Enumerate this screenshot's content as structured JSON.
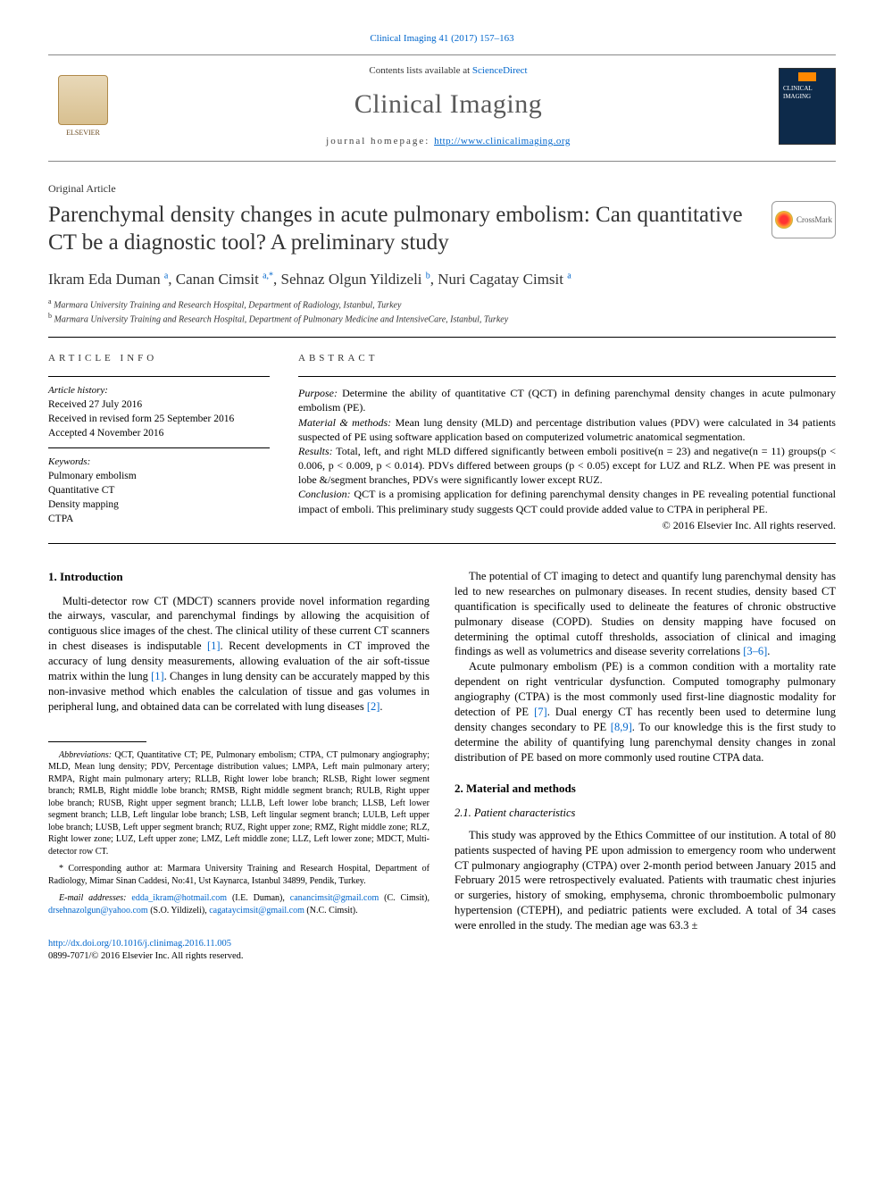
{
  "top_citation": "Clinical Imaging 41 (2017) 157–163",
  "masthead": {
    "contents_prefix": "Contents lists available at ",
    "contents_link": "ScienceDirect",
    "journal": "Clinical Imaging",
    "homepage_prefix": "journal homepage: ",
    "homepage_url": "http://www.clinicalimaging.org",
    "elsevier_label": "ELSEVIER",
    "cover_label": "CLINICAL IMAGING"
  },
  "article_type": "Original Article",
  "title": "Parenchymal density changes in acute pulmonary embolism: Can quantitative CT be a diagnostic tool? A preliminary study",
  "crossmark": "CrossMark",
  "authors_html": "Ikram Eda Duman <sup>a</sup>, Canan Cimsit <sup>a,*</sup>, Sehnaz Olgun Yildizeli <sup>b</sup>, Nuri Cagatay Cimsit <sup>a</sup>",
  "affiliations": {
    "a": "Marmara University Training and Research Hospital, Department of Radiology, Istanbul, Turkey",
    "b": "Marmara University Training and Research Hospital, Department of Pulmonary Medicine and IntensiveCare, Istanbul, Turkey"
  },
  "info": {
    "label": "ARTICLE INFO",
    "history_label": "Article history:",
    "received": "Received 27 July 2016",
    "revised": "Received in revised form 25 September 2016",
    "accepted": "Accepted 4 November 2016",
    "keywords_label": "Keywords:",
    "keywords": [
      "Pulmonary embolism",
      "Quantitative CT",
      "Density mapping",
      "CTPA"
    ]
  },
  "abstract": {
    "label": "ABSTRACT",
    "purpose_lbl": "Purpose:",
    "purpose": " Determine the ability of quantitative CT (QCT) in defining parenchymal density changes in acute pulmonary embolism (PE).",
    "methods_lbl": "Material & methods:",
    "methods": " Mean lung density (MLD) and percentage distribution values (PDV) were calculated in 34 patients suspected of PE using software application based on computerized volumetric anatomical segmentation.",
    "results_lbl": "Results:",
    "results": " Total, left, and right MLD differed significantly between emboli positive(n = 23) and negative(n = 11) groups(p < 0.006, p < 0.009, p < 0.014). PDVs differed between groups (p < 0.05) except for LUZ and RLZ. When PE was present in lobe &/segment branches, PDVs were significantly lower except RUZ.",
    "conclusion_lbl": "Conclusion:",
    "conclusion": " QCT is a promising application for defining parenchymal density changes in PE revealing potential functional impact of emboli. This preliminary study suggests QCT could provide added value to CTPA in peripheral PE.",
    "copyright": "© 2016 Elsevier Inc. All rights reserved."
  },
  "body": {
    "intro_h": "1. Introduction",
    "intro_p1": "Multi-detector row CT (MDCT) scanners provide novel information regarding the airways, vascular, and parenchymal findings by allowing the acquisition of contiguous slice images of the chest. The clinical utility of these current CT scanners in chest diseases is indisputable [1]. Recent developments in CT improved the accuracy of lung density measurements, allowing evaluation of the air soft-tissue matrix within the lung [1]. Changes in lung density can be accurately mapped by this non-invasive method which enables the calculation of tissue and gas volumes in peripheral lung, and obtained data can be correlated with lung diseases [2].",
    "intro_p2": "The potential of CT imaging to detect and quantify lung parenchymal density has led to new researches on pulmonary diseases. In recent studies, density based CT quantification is specifically used to delineate the features of chronic obstructive pulmonary disease (COPD). Studies on density mapping have focused on determining the optimal cutoff thresholds, association of clinical and imaging findings as well as volumetrics and disease severity correlations [3–6].",
    "intro_p3": "Acute pulmonary embolism (PE) is a common condition with a mortality rate dependent on right ventricular dysfunction. Computed tomography pulmonary angiography (CTPA) is the most commonly used first-line diagnostic modality for detection of PE [7]. Dual energy CT has recently been used to determine lung density changes secondary to PE [8,9]. To our knowledge this is the first study to determine the ability of quantifying lung parenchymal density changes in zonal distribution of PE based on more commonly used routine CTPA data.",
    "methods_h": "2. Material and methods",
    "methods_sub": "2.1. Patient characteristics",
    "methods_p1": "This study was approved by the Ethics Committee of our institution. A total of 80 patients suspected of having PE upon admission to emergency room who underwent CT pulmonary angiography (CTPA) over 2-month period between January 2015 and February 2015 were retrospectively evaluated. Patients with traumatic chest injuries or surgeries, history of smoking, emphysema, chronic thromboembolic pulmonary hypertension (CTEPH), and pediatric patients were excluded. A total of 34 cases were enrolled in the study. The median age was 63.3 ±"
  },
  "footnotes": {
    "abbrev_lbl": "Abbreviations:",
    "abbrev": " QCT, Quantitative CT; PE, Pulmonary embolism; CTPA, CT pulmonary angiography; MLD, Mean lung density; PDV, Percentage distribution values; LMPA, Left main pulmonary artery; RMPA, Right main pulmonary artery; RLLB, Right lower lobe branch; RLSB, Right lower segment branch; RMLB, Right middle lobe branch; RMSB, Right middle segment branch; RULB, Right upper lobe branch; RUSB, Right upper segment branch; LLLB, Left lower lobe branch; LLSB, Left lower segment branch; LLB, Left lingular lobe branch; LSB, Left lingular segment branch; LULB, Left upper lobe branch; LUSB, Left upper segment branch; RUZ, Right upper zone; RMZ, Right middle zone; RLZ, Right lower zone; LUZ, Left upper zone; LMZ, Left middle zone; LLZ, Left lower zone; MDCT, Multi-detector row CT.",
    "corr_lbl": "* Corresponding author at:",
    "corr": " Marmara University Training and Research Hospital, Department of Radiology, Mimar Sinan Caddesi, No:41, Ust Kaynarca, Istanbul 34899, Pendik, Turkey.",
    "email_lbl": "E-mail addresses:",
    "email1": "edda_ikram@hotmail.com",
    "email1_who": " (I.E. Duman), ",
    "email2": "canancimsit@gmail.com",
    "email2_who": " (C. Cimsit), ",
    "email3": "drsehnazolgun@yahoo.com",
    "email3_who": " (S.O. Yildizeli), ",
    "email4": "cagataycimsit@gmail.com",
    "email4_who": " (N.C. Cimsit)."
  },
  "doi": {
    "url": "http://dx.doi.org/10.1016/j.clinimag.2016.11.005",
    "issn_line": "0899-7071/© 2016 Elsevier Inc. All rights reserved."
  },
  "colors": {
    "link": "#0066cc",
    "text": "#000000",
    "title_gray": "#5a5a5a"
  }
}
